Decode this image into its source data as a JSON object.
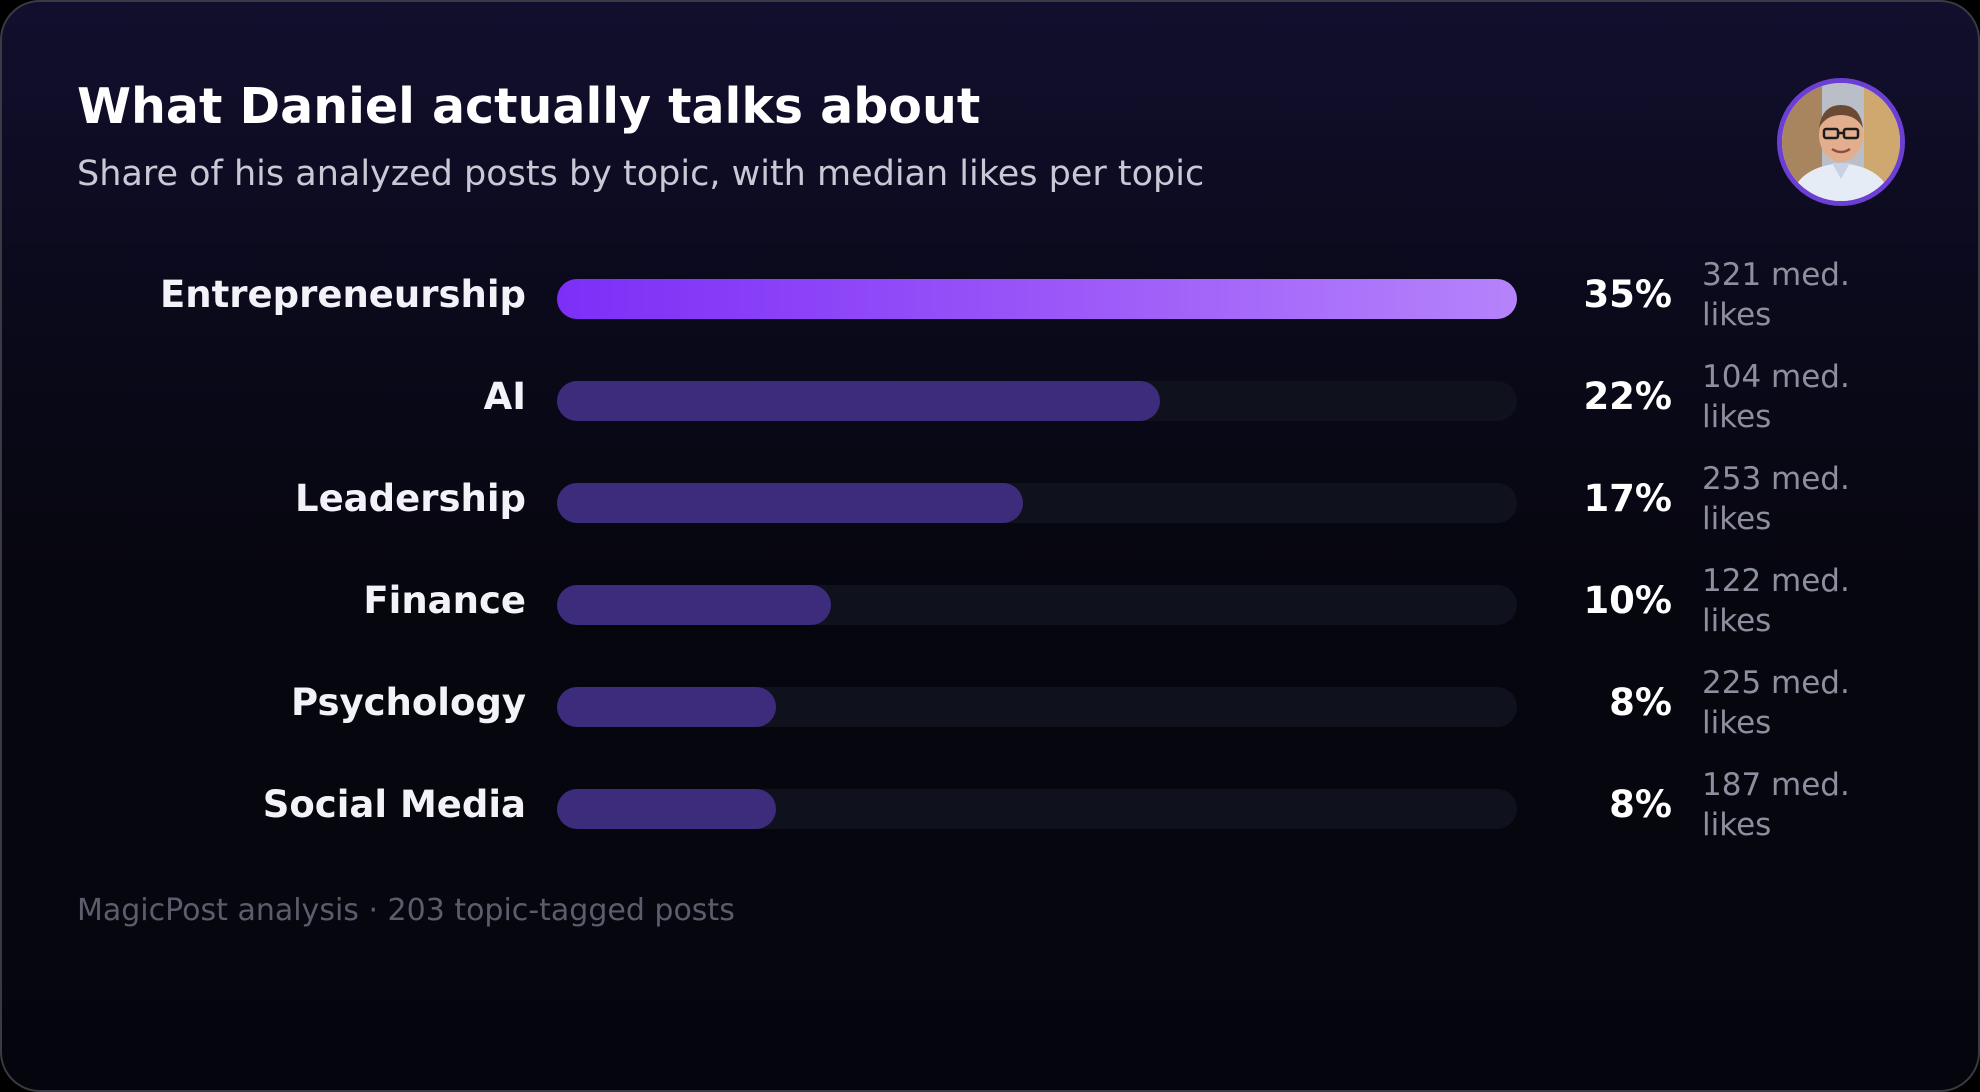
{
  "header": {
    "title": "What Daniel actually talks about",
    "subtitle": "Share of his analyzed posts by topic, with median likes per topic"
  },
  "footer": {
    "text": "MagicPost analysis · 203 topic-tagged posts"
  },
  "colors": {
    "accent_gradient_start": "#7c2ff7",
    "accent_gradient_end": "#b583fb",
    "bar_fill": "#3d2c7c",
    "bar_track": "#0f121d",
    "avatar_ring": "#6b3fd4"
  },
  "chart_data": {
    "type": "bar",
    "orientation": "horizontal",
    "title": "What Daniel actually talks about",
    "subtitle": "Share of his analyzed posts by topic, with median likes per topic",
    "categories": [
      "Entrepreneurship",
      "AI",
      "Leadership",
      "Finance",
      "Psychology",
      "Social Media"
    ],
    "values": [
      35,
      22,
      17,
      10,
      8,
      8
    ],
    "value_labels": [
      "35%",
      "22%",
      "17%",
      "10%",
      "8%",
      "8%"
    ],
    "median_likes": [
      321,
      104,
      253,
      122,
      225,
      187
    ],
    "median_likes_labels": [
      "321 med. likes",
      "104 med. likes",
      "253 med. likes",
      "122 med. likes",
      "225 med. likes",
      "187 med. likes"
    ],
    "xlim": [
      0,
      35
    ],
    "unit": "%",
    "grid": false,
    "legend": "none"
  }
}
